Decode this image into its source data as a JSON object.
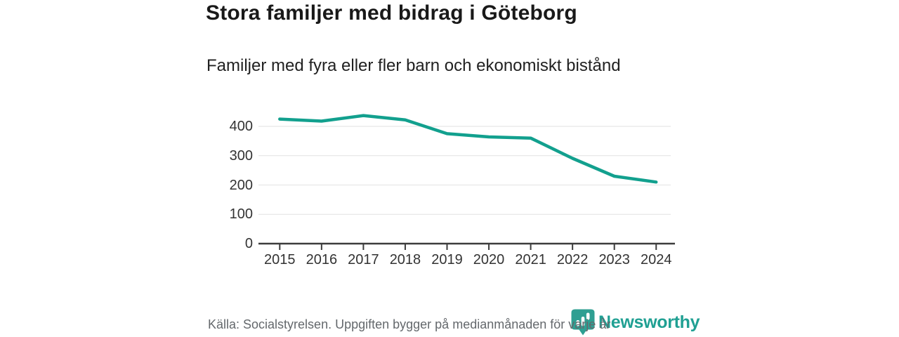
{
  "header": {
    "title": "Stora familjer med bidrag i Göteborg",
    "subtitle": "Familjer med fyra eller fler barn och ekonomiskt bistånd"
  },
  "chart_data": {
    "type": "line",
    "title": "Stora familjer med bidrag i Göteborg",
    "subtitle": "Familjer med fyra eller fler barn och ekonomiskt bistånd",
    "x": [
      2015,
      2016,
      2017,
      2018,
      2019,
      2020,
      2021,
      2022,
      2023,
      2024
    ],
    "series": [
      {
        "name": "Familjer med fyra eller fler barn och ekonomiskt bistånd",
        "values": [
          425,
          418,
          437,
          422,
          375,
          364,
          360,
          291,
          230,
          210
        ]
      }
    ],
    "xlabel": "",
    "ylabel": "",
    "ylim": [
      0,
      450
    ],
    "yticks": [
      0,
      100,
      200,
      300,
      400
    ],
    "grid": true,
    "legend_position": "none",
    "line_color": "#12a08e",
    "grid_color": "#e2e2e2",
    "axis_color": "#3c3c3c",
    "tick_label_color": "#333333"
  },
  "footer": {
    "source": "Källa: Socialstyrelsen. Uppgiften bygger på medianmånaden för varje år",
    "logo_text": "Newsworthy",
    "logo_color": "#2f9f92"
  }
}
